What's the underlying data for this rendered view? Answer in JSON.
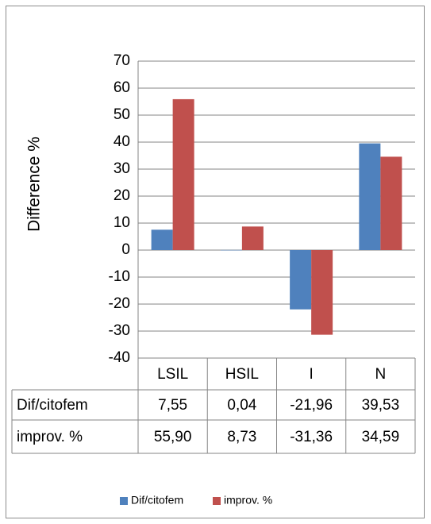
{
  "chart_data": {
    "type": "bar",
    "ylabel": "Difference %",
    "xlabel": "",
    "ylim": [
      -40,
      70
    ],
    "ytick_step": 10,
    "grid": true,
    "legend_position": "bottom",
    "categories": [
      "LSIL",
      "HSIL",
      "I",
      "N"
    ],
    "series": [
      {
        "name": "Dif/citofem",
        "color": "#4F81BD",
        "values": [
          7.55,
          0.04,
          -21.96,
          39.53
        ],
        "labels": [
          "7,55",
          "0,04",
          "-21,96",
          "39,53"
        ]
      },
      {
        "name": "improv. %",
        "color": "#C0504D",
        "values": [
          55.9,
          8.73,
          -31.36,
          34.59
        ],
        "labels": [
          "55,90",
          "8,73",
          "-31,36",
          "34,59"
        ]
      }
    ]
  }
}
